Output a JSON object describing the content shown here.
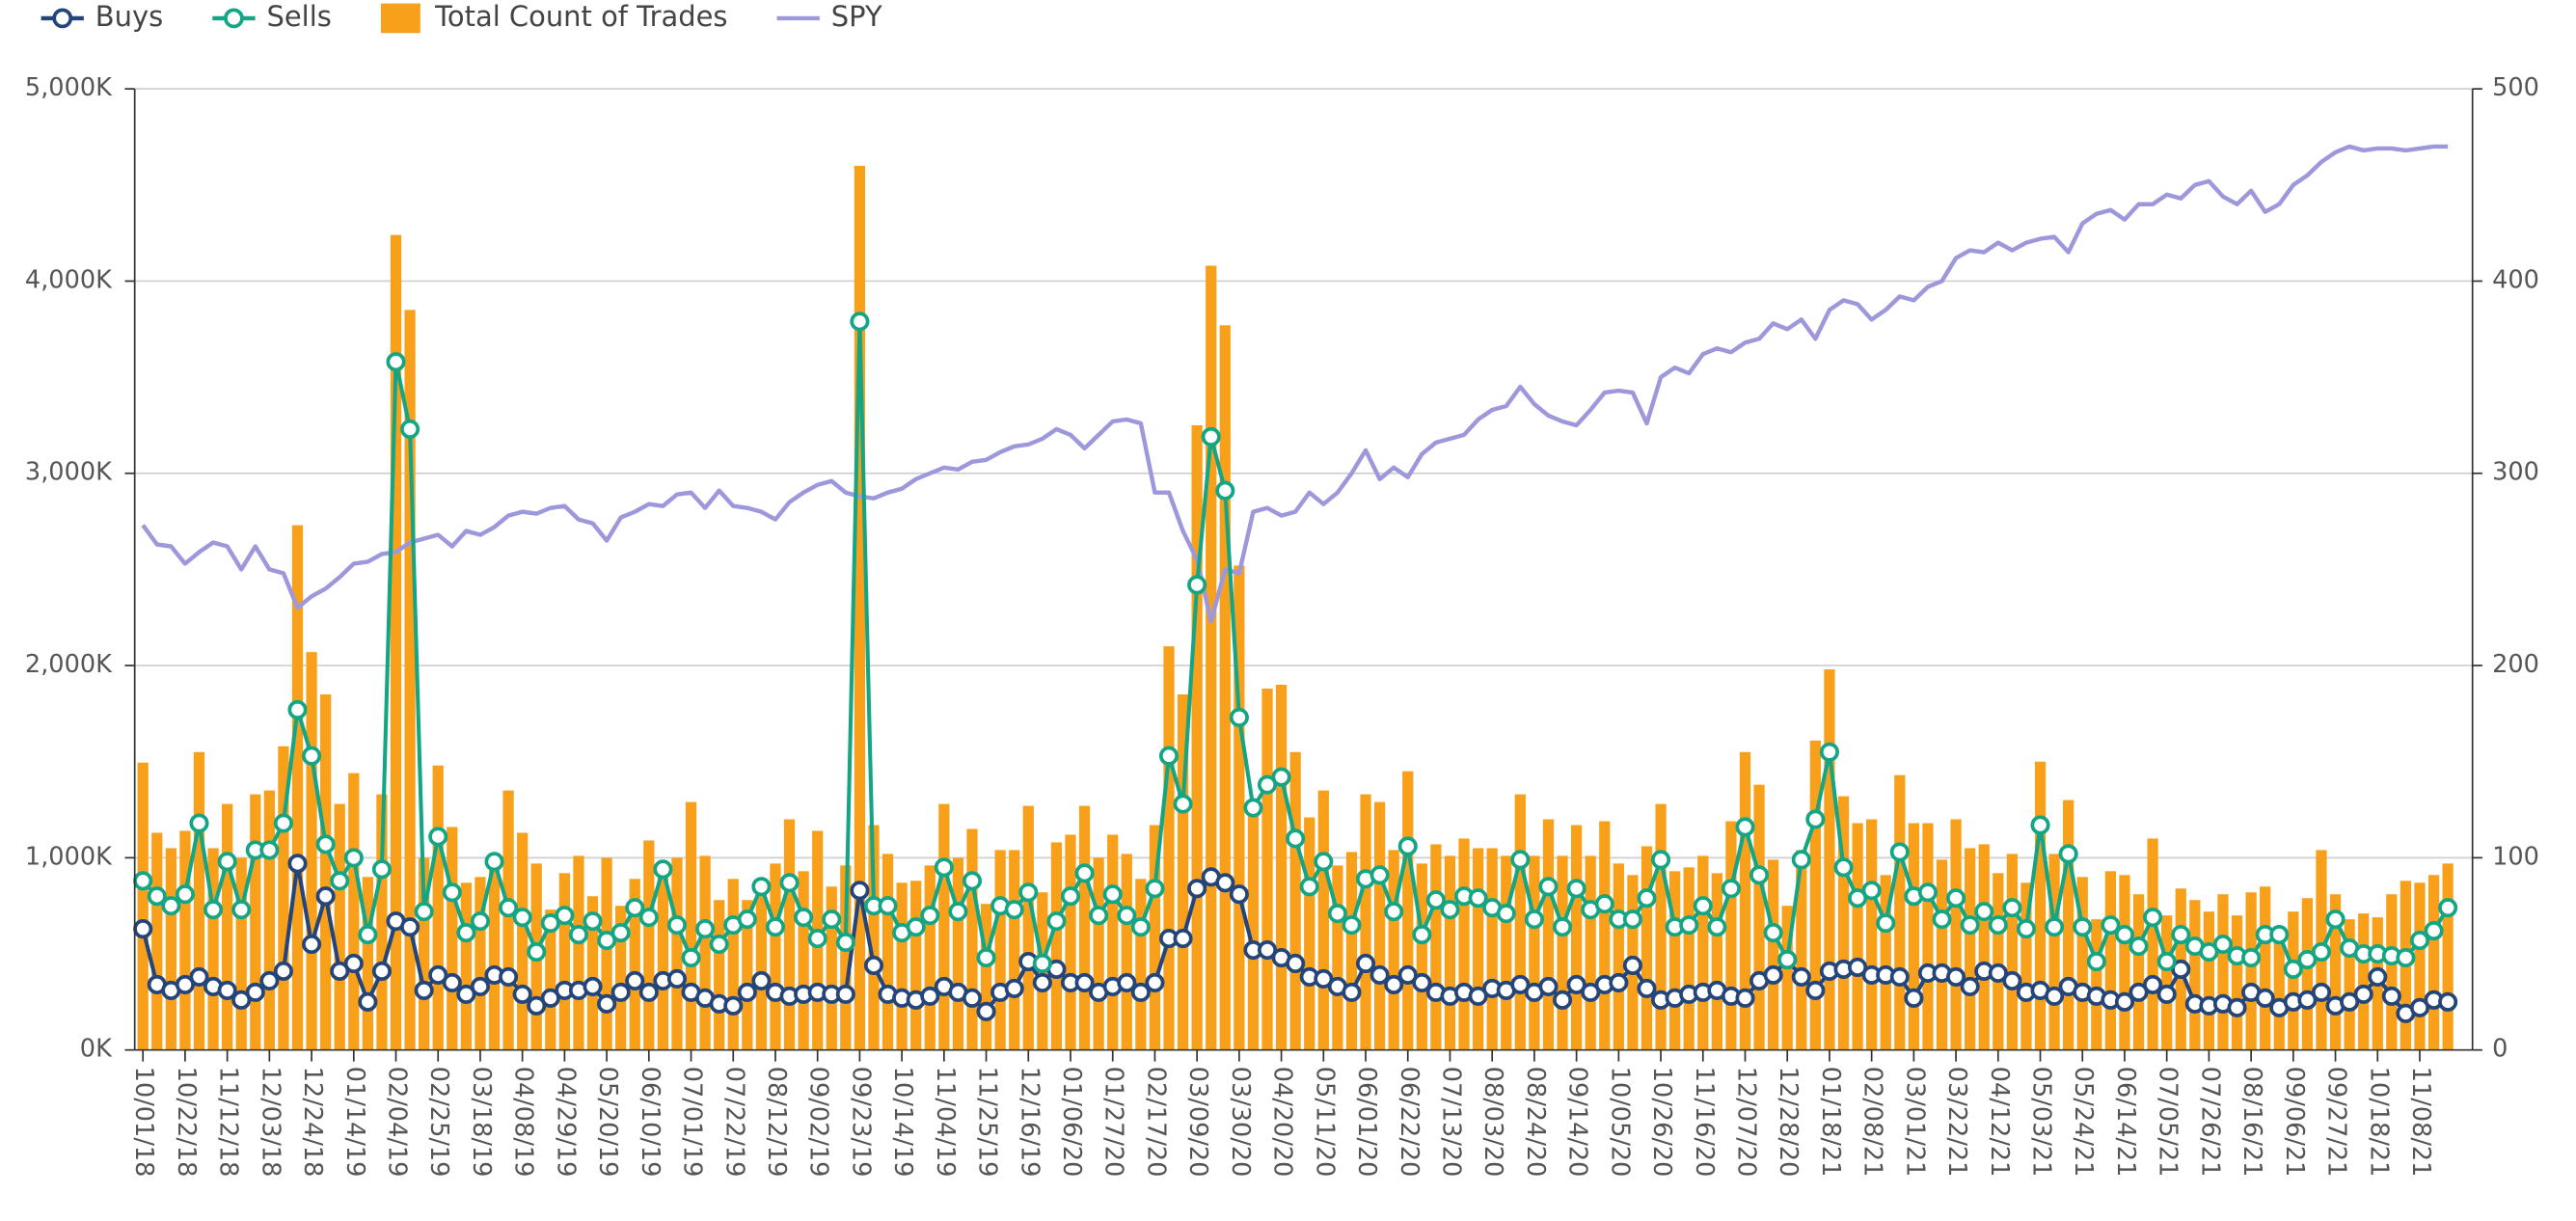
{
  "chart_data": {
    "type": "combo",
    "legend": "top-left",
    "grid": true,
    "categories": [
      "10/01/18",
      null,
      null,
      "10/22/18",
      null,
      null,
      "11/12/18",
      null,
      null,
      "12/03/18",
      null,
      null,
      "12/24/18",
      null,
      null,
      "01/14/19",
      null,
      null,
      "02/04/19",
      null,
      null,
      "02/25/19",
      null,
      null,
      "03/18/19",
      null,
      null,
      "04/08/19",
      null,
      null,
      "04/29/19",
      null,
      null,
      "05/20/19",
      null,
      null,
      "06/10/19",
      null,
      null,
      "07/01/19",
      null,
      null,
      "07/22/19",
      null,
      null,
      "08/12/19",
      null,
      null,
      "09/02/19",
      null,
      null,
      "09/23/19",
      null,
      null,
      "10/14/19",
      null,
      null,
      "11/04/19",
      null,
      null,
      "11/25/19",
      null,
      null,
      "12/16/19",
      null,
      null,
      "01/06/20",
      null,
      null,
      "01/27/20",
      null,
      null,
      "02/17/20",
      null,
      null,
      "03/09/20",
      null,
      null,
      "03/30/20",
      null,
      null,
      "04/20/20",
      null,
      null,
      "05/11/20",
      null,
      null,
      "06/01/20",
      null,
      null,
      "06/22/20",
      null,
      null,
      "07/13/20",
      null,
      null,
      "08/03/20",
      null,
      null,
      "08/24/20",
      null,
      null,
      "09/14/20",
      null,
      null,
      "10/05/20",
      null,
      null,
      "10/26/20",
      null,
      null,
      "11/16/20",
      null,
      null,
      "12/07/20",
      null,
      null,
      "12/28/20",
      null,
      null,
      "01/18/21",
      null,
      null,
      "02/08/21",
      null,
      null,
      "03/01/21",
      null,
      null,
      "03/22/21",
      null,
      null,
      "04/12/21",
      null,
      null,
      "05/03/21",
      null,
      null,
      "05/24/21",
      null,
      null,
      "06/14/21",
      null,
      null,
      "07/05/21",
      null,
      null,
      "07/26/21",
      null,
      null,
      "08/16/21",
      null,
      null,
      "09/06/21",
      null,
      null,
      "09/27/21",
      null,
      null,
      "10/18/21",
      null,
      null,
      "11/08/21",
      null,
      null
    ],
    "series": [
      {
        "name": "Buys",
        "type": "line",
        "marker": true,
        "color": "#23457a",
        "values": [
          630,
          340,
          310,
          340,
          380,
          330,
          310,
          260,
          300,
          360,
          410,
          970,
          550,
          800,
          410,
          450,
          250,
          410,
          670,
          640,
          310,
          390,
          350,
          290,
          330,
          390,
          380,
          290,
          230,
          270,
          310,
          310,
          330,
          240,
          300,
          360,
          300,
          360,
          370,
          300,
          270,
          240,
          230,
          300,
          360,
          300,
          280,
          290,
          300,
          290,
          290,
          830,
          440,
          290,
          270,
          260,
          280,
          330,
          300,
          270,
          200,
          300,
          320,
          460,
          350,
          420,
          350,
          350,
          300,
          330,
          350,
          300,
          350,
          580,
          580,
          840,
          900,
          870,
          810,
          520,
          520,
          480,
          450,
          380,
          370,
          330,
          300,
          450,
          390,
          340,
          390,
          350,
          300,
          280,
          300,
          280,
          320,
          310,
          340,
          300,
          330,
          260,
          340,
          300,
          340,
          350,
          440,
          320,
          260,
          270,
          290,
          300,
          310,
          280,
          270,
          360,
          390,
          470,
          380,
          310,
          410,
          420,
          430,
          390,
          390,
          380,
          270,
          400,
          400,
          380,
          330,
          410,
          400,
          360,
          300,
          310,
          280,
          330,
          300,
          280,
          260,
          250,
          300,
          340,
          290,
          420,
          240,
          230,
          240,
          220,
          300,
          270,
          220,
          250,
          260,
          300,
          230,
          250,
          290,
          380,
          280,
          190,
          220,
          260,
          250
        ]
      },
      {
        "name": "Sells",
        "type": "line",
        "marker": true,
        "color": "#14a684",
        "values": [
          880,
          800,
          750,
          810,
          1180,
          730,
          980,
          730,
          1040,
          1040,
          1180,
          1770,
          1530,
          1070,
          880,
          1000,
          600,
          940,
          3580,
          3230,
          720,
          1110,
          820,
          610,
          670,
          980,
          740,
          690,
          510,
          660,
          700,
          600,
          670,
          570,
          610,
          740,
          690,
          940,
          650,
          480,
          630,
          550,
          650,
          680,
          850,
          640,
          870,
          690,
          580,
          680,
          560,
          3790,
          750,
          750,
          610,
          640,
          700,
          950,
          720,
          880,
          480,
          750,
          730,
          820,
          450,
          670,
          800,
          920,
          700,
          810,
          700,
          640,
          840,
          1530,
          1280,
          2420,
          3190,
          2910,
          1730,
          1260,
          1380,
          1420,
          1100,
          850,
          980,
          710,
          650,
          890,
          910,
          720,
          1060,
          600,
          780,
          730,
          800,
          790,
          740,
          710,
          990,
          680,
          850,
          640,
          840,
          730,
          760,
          680,
          680,
          790,
          990,
          640,
          650,
          750,
          640,
          840,
          1160,
          910,
          610,
          470,
          990,
          1200,
          1550,
          950,
          790,
          830,
          660,
          1030,
          800,
          820,
          680,
          790,
          650,
          720,
          650,
          740,
          630,
          1170,
          640,
          1020,
          640,
          460,
          650,
          600,
          540,
          690,
          460,
          600,
          540,
          510,
          550,
          490,
          480,
          600,
          600,
          420,
          470,
          510,
          680,
          530,
          500,
          500,
          490,
          480,
          570,
          620,
          740
        ]
      },
      {
        "name": "Total Count of Trades",
        "type": "bar",
        "color": "#f9a01b",
        "values": [
          1495,
          1130,
          1050,
          1140,
          1550,
          1050,
          1280,
          1000,
          1330,
          1350,
          1580,
          2730,
          2070,
          1850,
          1280,
          1440,
          900,
          1330,
          4240,
          3850,
          1000,
          1480,
          1160,
          870,
          900,
          1000,
          1350,
          1130,
          970,
          730,
          920,
          1010,
          800,
          1000,
          750,
          890,
          1090,
          940,
          1000,
          1290,
          1010,
          780,
          890,
          780,
          860,
          970,
          1200,
          930,
          1140,
          850,
          960,
          4600,
          1170,
          1020,
          870,
          880,
          960,
          1280,
          1000,
          1150,
          760,
          1040,
          1040,
          1270,
          820,
          1080,
          1120,
          1270,
          1000,
          1120,
          1020,
          890,
          1170,
          2100,
          1850,
          3250,
          4080,
          3770,
          2520,
          1290,
          1880,
          1900,
          1550,
          1210,
          1350,
          960,
          1030,
          1330,
          1290,
          1040,
          1450,
          970,
          1070,
          1010,
          1100,
          1050,
          1050,
          1010,
          1330,
          1010,
          1200,
          1010,
          1170,
          1010,
          1190,
          970,
          910,
          1060,
          1280,
          930,
          950,
          1010,
          920,
          1190,
          1550,
          1380,
          990,
          750,
          1040,
          1610,
          1980,
          1320,
          1180,
          1200,
          910,
          1430,
          1180,
          1180,
          990,
          1200,
          1050,
          1070,
          920,
          1020,
          870,
          1500,
          1020,
          1300,
          900,
          680,
          930,
          910,
          810,
          1100,
          700,
          840,
          780,
          720,
          810,
          700,
          820,
          850,
          640,
          720,
          790,
          1040,
          810,
          680,
          710,
          690,
          810,
          880,
          870,
          910,
          970
        ]
      },
      {
        "name": "SPY",
        "type": "line",
        "marker": false,
        "color": "#9d98dc",
        "axis": "y2",
        "values": [
          273,
          263,
          262,
          253,
          259,
          264,
          262,
          250,
          262,
          250,
          248,
          230,
          236,
          240,
          246,
          253,
          254,
          258,
          259,
          264,
          266,
          268,
          262,
          270,
          268,
          272,
          278,
          280,
          279,
          282,
          283,
          276,
          274,
          265,
          277,
          280,
          284,
          283,
          289,
          290,
          282,
          291,
          283,
          282,
          280,
          276,
          285,
          290,
          294,
          296,
          290,
          288,
          287,
          290,
          292,
          297,
          300,
          303,
          302,
          306,
          307,
          311,
          314,
          315,
          318,
          323,
          320,
          313,
          320,
          327,
          328,
          326,
          290,
          290,
          270,
          255,
          223,
          250,
          248,
          280,
          282,
          278,
          280,
          290,
          284,
          290,
          300,
          312,
          297,
          303,
          298,
          310,
          316,
          318,
          320,
          328,
          333,
          335,
          345,
          336,
          330,
          327,
          325,
          333,
          342,
          343,
          342,
          326,
          350,
          355,
          352,
          362,
          365,
          363,
          368,
          370,
          378,
          375,
          380,
          370,
          385,
          390,
          388,
          380,
          385,
          392,
          390,
          397,
          400,
          412,
          416,
          415,
          420,
          416,
          420,
          422,
          423,
          415,
          430,
          435,
          437,
          432,
          440,
          440,
          445,
          443,
          450,
          452,
          444,
          440,
          447,
          436,
          440,
          450,
          455,
          462,
          467,
          470,
          468,
          469,
          469,
          468,
          469,
          470,
          470
        ]
      }
    ],
    "ylim": [
      0,
      5000
    ],
    "yticks": [
      {
        "value": 0,
        "label": "0K"
      },
      {
        "value": 1000,
        "label": "1,000K"
      },
      {
        "value": 2000,
        "label": "2,000K"
      },
      {
        "value": 3000,
        "label": "3,000K"
      },
      {
        "value": 4000,
        "label": "4,000K"
      },
      {
        "value": 5000,
        "label": "5,000K"
      }
    ],
    "y2lim": [
      0,
      500
    ],
    "y2ticks": [
      0,
      100,
      200,
      300,
      400,
      500
    ]
  }
}
